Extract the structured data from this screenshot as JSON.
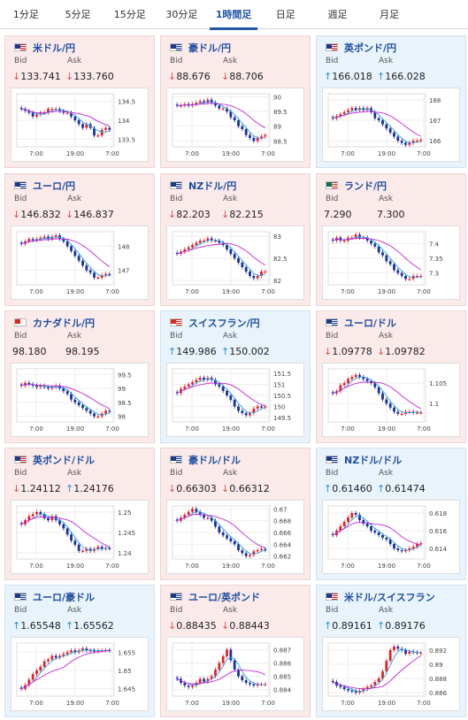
{
  "tabs": [
    {
      "label": "1分足",
      "active": false
    },
    {
      "label": "5分足",
      "active": false
    },
    {
      "label": "15分足",
      "active": false
    },
    {
      "label": "30分足",
      "active": false
    },
    {
      "label": "1時間足",
      "active": true
    },
    {
      "label": "日足",
      "active": false
    },
    {
      "label": "週足",
      "active": false
    },
    {
      "label": "月足",
      "active": false
    }
  ],
  "bid_label": "Bid",
  "ask_label": "Ask",
  "x_ticks": [
    "7:00",
    "19:00",
    "7:00"
  ],
  "colors": {
    "up_candle": "#e8202a",
    "down_candle": "#1b2f9e",
    "ma_short": "#2ea7e0",
    "ma_long": "#c02ad4",
    "down_card": "#fbeaea",
    "up_card": "#e8f3fb"
  },
  "pairs": [
    {
      "name": "米ドル/円",
      "flag": "US",
      "dir": "down",
      "bid": "133.741",
      "ask": "133.760",
      "bid_arrow": "↓",
      "ask_arrow": "↓",
      "yticks": [
        "134.5",
        "134",
        "133.5"
      ],
      "ymin": 133.3,
      "ymax": 134.7,
      "path": [
        134.3,
        134.25,
        134.2,
        134.1,
        134.15,
        134.2,
        134.2,
        134.3,
        134.3,
        134.3,
        134.25,
        134.2,
        134.2,
        134.1,
        134.0,
        133.9,
        133.8,
        133.9,
        133.8,
        133.6,
        133.6,
        133.75,
        133.8,
        133.75
      ]
    },
    {
      "name": "豪ドル/円",
      "flag": "AU",
      "dir": "down",
      "bid": "88.676",
      "ask": "88.706",
      "bid_arrow": "↓",
      "ask_arrow": "↓",
      "yticks": [
        "90",
        "89.5",
        "89",
        "88.5"
      ],
      "ymin": 88.3,
      "ymax": 90.1,
      "path": [
        89.7,
        89.7,
        89.75,
        89.7,
        89.75,
        89.8,
        89.85,
        89.8,
        89.9,
        89.8,
        89.7,
        89.6,
        89.6,
        89.5,
        89.3,
        89.2,
        89.0,
        88.9,
        88.7,
        88.6,
        88.5,
        88.6,
        88.65,
        88.7
      ]
    },
    {
      "name": "英ポンド/円",
      "flag": "GB",
      "dir": "up",
      "bid": "166.018",
      "ask": "166.028",
      "bid_arrow": "↑",
      "ask_arrow": "↑",
      "yticks": [
        "168",
        "167",
        "166"
      ],
      "ymin": 165.7,
      "ymax": 168.3,
      "path": [
        167.1,
        167.2,
        167.3,
        167.4,
        167.5,
        167.6,
        167.5,
        167.6,
        167.5,
        167.6,
        167.4,
        167.1,
        167.0,
        166.8,
        166.6,
        166.4,
        166.2,
        166.0,
        165.9,
        165.8,
        165.9,
        166.0,
        166.0,
        166.05
      ]
    },
    {
      "name": "ユーロ/円",
      "flag": "EU",
      "dir": "down",
      "bid": "146.832",
      "ask": "146.837",
      "bid_arrow": "↓",
      "ask_arrow": "↓",
      "yticks": [
        "148",
        "147"
      ],
      "ymin": 146.4,
      "ymax": 148.6,
      "path": [
        148.1,
        148.2,
        148.3,
        148.25,
        148.3,
        148.35,
        148.4,
        148.3,
        148.4,
        148.45,
        148.3,
        148.2,
        148.0,
        147.8,
        147.6,
        147.4,
        147.2,
        147.0,
        146.9,
        146.7,
        146.7,
        146.8,
        146.85,
        146.83
      ]
    },
    {
      "name": "NZドル/円",
      "flag": "NZ",
      "dir": "down",
      "bid": "82.203",
      "ask": "82.215",
      "bid_arrow": "↓",
      "ask_arrow": "↓",
      "yticks": [
        "83",
        "82.5",
        "82"
      ],
      "ymin": 81.9,
      "ymax": 83.1,
      "path": [
        82.6,
        82.65,
        82.7,
        82.75,
        82.8,
        82.85,
        82.9,
        82.9,
        82.95,
        82.9,
        82.9,
        82.85,
        82.8,
        82.7,
        82.6,
        82.5,
        82.4,
        82.3,
        82.2,
        82.1,
        82.05,
        82.1,
        82.2,
        82.2
      ]
    },
    {
      "name": "ランド/円",
      "flag": "ZA",
      "dir": "down",
      "bid": "7.290",
      "ask": "7.300",
      "bid_arrow": "",
      "ask_arrow": "",
      "yticks": [
        "7.4",
        "7.35",
        "7.3"
      ],
      "ymin": 7.26,
      "ymax": 7.44,
      "path": [
        7.41,
        7.42,
        7.41,
        7.41,
        7.42,
        7.42,
        7.43,
        7.42,
        7.42,
        7.41,
        7.4,
        7.39,
        7.37,
        7.36,
        7.34,
        7.33,
        7.31,
        7.3,
        7.29,
        7.28,
        7.28,
        7.29,
        7.29,
        7.29
      ]
    },
    {
      "name": "カナダドル/円",
      "flag": "CA",
      "dir": "down",
      "bid": "98.180",
      "ask": "98.195",
      "bid_arrow": "",
      "ask_arrow": "",
      "yticks": [
        "99.5",
        "99",
        "98.5",
        "98"
      ],
      "ymin": 97.8,
      "ymax": 99.7,
      "path": [
        99.1,
        99.2,
        99.15,
        99.1,
        99.05,
        99.1,
        99.05,
        99.0,
        99.05,
        99.1,
        99.0,
        98.9,
        98.8,
        98.6,
        98.5,
        98.4,
        98.3,
        98.2,
        98.1,
        98.0,
        98.0,
        98.1,
        98.2,
        98.18
      ]
    },
    {
      "name": "スイスフラン/円",
      "flag": "CH",
      "dir": "up",
      "bid": "149.986",
      "ask": "150.002",
      "bid_arrow": "↑",
      "ask_arrow": "↑",
      "yticks": [
        "151.5",
        "151",
        "150.5",
        "150",
        "149.5"
      ],
      "ymin": 149.3,
      "ymax": 151.7,
      "path": [
        150.6,
        150.8,
        150.9,
        151.0,
        151.1,
        151.2,
        151.3,
        151.2,
        151.3,
        151.2,
        151.0,
        150.9,
        150.7,
        150.5,
        150.3,
        150.0,
        149.8,
        149.7,
        149.6,
        149.7,
        149.9,
        150.0,
        149.95,
        149.99
      ]
    },
    {
      "name": "ユーロ/ドル",
      "flag": "EU",
      "dir": "down",
      "bid": "1.09778",
      "ask": "1.09782",
      "bid_arrow": "↓",
      "ask_arrow": "↓",
      "yticks": [
        "1.105",
        "1.1"
      ],
      "ymin": 1.0955,
      "ymax": 1.1085,
      "path": [
        1.1025,
        1.103,
        1.1045,
        1.105,
        1.106,
        1.1065,
        1.107,
        1.1065,
        1.106,
        1.1055,
        1.105,
        1.104,
        1.1025,
        1.101,
        1.1,
        1.099,
        1.098,
        1.0975,
        1.0975,
        1.098,
        1.098,
        1.0978,
        1.0978,
        1.0978
      ]
    },
    {
      "name": "英ポンド/ドル",
      "flag": "GB",
      "dir": "down",
      "bid": "1.24112",
      "ask": "1.24176",
      "bid_arrow": "↓",
      "ask_arrow": "↑",
      "yticks": [
        "1.25",
        "1.245",
        "1.24"
      ],
      "ymin": 1.2385,
      "ymax": 1.2515,
      "path": [
        1.247,
        1.248,
        1.249,
        1.2495,
        1.25,
        1.2495,
        1.2485,
        1.248,
        1.249,
        1.248,
        1.247,
        1.246,
        1.2445,
        1.243,
        1.242,
        1.2405,
        1.2405,
        1.241,
        1.2405,
        1.241,
        1.2415,
        1.241,
        1.2412,
        1.2411
      ]
    },
    {
      "name": "豪ドル/ドル",
      "flag": "AU",
      "dir": "down",
      "bid": "0.66303",
      "ask": "0.66312",
      "bid_arrow": "↓",
      "ask_arrow": "↓",
      "yticks": [
        "0.67",
        "0.668",
        "0.666",
        "0.664",
        "0.662"
      ],
      "ymin": 0.6615,
      "ymax": 0.6705,
      "path": [
        0.668,
        0.6685,
        0.669,
        0.6695,
        0.67,
        0.6695,
        0.669,
        0.6685,
        0.6685,
        0.668,
        0.667,
        0.666,
        0.6655,
        0.665,
        0.6645,
        0.664,
        0.663,
        0.6625,
        0.662,
        0.6622,
        0.6628,
        0.663,
        0.6632,
        0.663
      ]
    },
    {
      "name": "NZドル/ドル",
      "flag": "NZ",
      "dir": "up",
      "bid": "0.61460",
      "ask": "0.61474",
      "bid_arrow": "↑",
      "ask_arrow": "↑",
      "yticks": [
        "0.618",
        "0.616",
        "0.614"
      ],
      "ymin": 0.6128,
      "ymax": 0.6188,
      "path": [
        0.6155,
        0.616,
        0.6165,
        0.617,
        0.6175,
        0.618,
        0.6178,
        0.6172,
        0.6168,
        0.6165,
        0.616,
        0.6158,
        0.6155,
        0.6152,
        0.615,
        0.6145,
        0.614,
        0.6138,
        0.6137,
        0.6138,
        0.614,
        0.6142,
        0.6145,
        0.6146
      ]
    },
    {
      "name": "ユーロ/豪ドル",
      "flag": "EU",
      "dir": "up",
      "bid": "1.65548",
      "ask": "1.65562",
      "bid_arrow": "↑",
      "ask_arrow": "↑",
      "yticks": [
        "1.655",
        "1.65",
        "1.645"
      ],
      "ymin": 1.643,
      "ymax": 1.6575,
      "path": [
        1.645,
        1.646,
        1.6475,
        1.649,
        1.65,
        1.651,
        1.6525,
        1.653,
        1.654,
        1.6535,
        1.654,
        1.6545,
        1.655,
        1.6555,
        1.655,
        1.6555,
        1.656,
        1.6555,
        1.6555,
        1.6552,
        1.6555,
        1.6555,
        1.6556,
        1.6555
      ]
    },
    {
      "name": "ユーロ/英ポンド",
      "flag": "EU",
      "dir": "down",
      "bid": "0.88435",
      "ask": "0.88443",
      "bid_arrow": "↓",
      "ask_arrow": "↓",
      "yticks": [
        "0.887",
        "0.886",
        "0.885",
        "0.884"
      ],
      "ymin": 0.8835,
      "ymax": 0.8875,
      "path": [
        0.8848,
        0.8845,
        0.8843,
        0.8842,
        0.8843,
        0.8845,
        0.8848,
        0.8846,
        0.8848,
        0.885,
        0.8855,
        0.886,
        0.8865,
        0.887,
        0.8862,
        0.8855,
        0.885,
        0.8847,
        0.8845,
        0.8844,
        0.8843,
        0.8844,
        0.8844,
        0.8844
      ]
    },
    {
      "name": "米ドル/スイスフラン",
      "flag": "US",
      "dir": "up",
      "bid": "0.89161",
      "ask": "0.89176",
      "bid_arrow": "↑",
      "ask_arrow": "↑",
      "yticks": [
        "0.892",
        "0.89",
        "0.888",
        "0.886"
      ],
      "ymin": 0.8855,
      "ymax": 0.893,
      "path": [
        0.8875,
        0.887,
        0.8868,
        0.8865,
        0.8863,
        0.8862,
        0.886,
        0.8862,
        0.8865,
        0.8868,
        0.887,
        0.8875,
        0.888,
        0.889,
        0.8905,
        0.892,
        0.8925,
        0.8922,
        0.892,
        0.8915,
        0.8918,
        0.8917,
        0.8916,
        0.8916
      ]
    }
  ]
}
